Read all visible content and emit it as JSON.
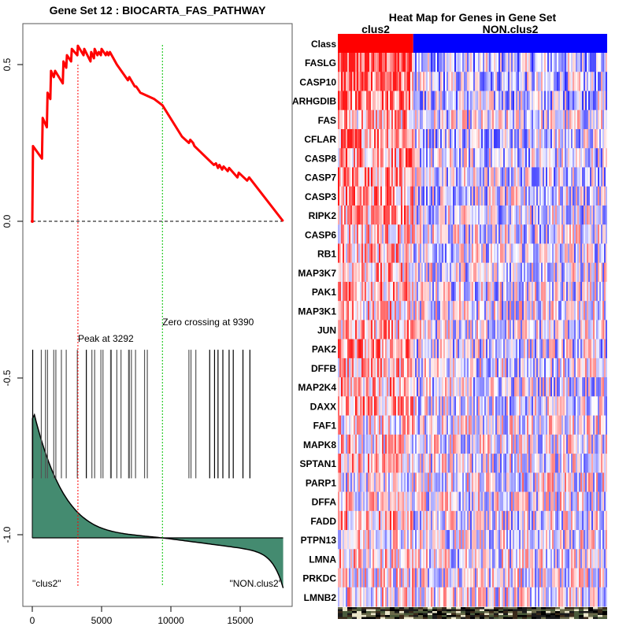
{
  "chart_data": [
    {
      "type": "line",
      "panel": "enrichment-plot",
      "title": "Gene Set  12 : BIOCARTA_FAS_PATHWAY",
      "xlabel": "",
      "ylabel": "",
      "xlim": [
        0,
        18000
      ],
      "ylim": [
        -1.2,
        0.65
      ],
      "x_ticks": [
        0,
        5000,
        10000,
        15000
      ],
      "x_tick_labels": [
        "0",
        "5000",
        "10000",
        "15000"
      ],
      "y_ticks": [
        0.5,
        0.0,
        -0.5,
        -1.0
      ],
      "y_tick_labels": [
        "0.5",
        "0.0",
        "-0.5",
        "-1.0"
      ],
      "grid": false,
      "series": [
        {
          "name": "running-enrichment-score",
          "color": "#ff0000",
          "x": [
            0,
            50,
            700,
            750,
            1050,
            1100,
            1300,
            1350,
            1550,
            1650,
            2200,
            2250,
            2450,
            2500,
            2800,
            2850,
            3250,
            3292,
            3700,
            3750,
            4200,
            4250,
            4450,
            4500,
            4700,
            4800,
            4950,
            5000,
            5300,
            5400,
            5500,
            5600,
            6100,
            6900,
            7000,
            7400,
            7500,
            7800,
            8300,
            8800,
            9390,
            10800,
            11300,
            11400,
            11600,
            11700,
            13100,
            13250,
            13400,
            13500,
            13700,
            13800,
            14100,
            14200,
            14800,
            14900,
            15500,
            15650,
            18100
          ],
          "y": [
            0.0,
            0.24,
            0.2,
            0.33,
            0.3,
            0.41,
            0.39,
            0.48,
            0.46,
            0.48,
            0.44,
            0.51,
            0.49,
            0.53,
            0.51,
            0.55,
            0.53,
            0.56,
            0.53,
            0.55,
            0.51,
            0.54,
            0.52,
            0.55,
            0.53,
            0.54,
            0.53,
            0.55,
            0.53,
            0.54,
            0.53,
            0.54,
            0.5,
            0.45,
            0.46,
            0.43,
            0.43,
            0.41,
            0.4,
            0.39,
            0.37,
            0.27,
            0.25,
            0.26,
            0.25,
            0.24,
            0.18,
            0.185,
            0.17,
            0.18,
            0.165,
            0.175,
            0.16,
            0.17,
            0.14,
            0.155,
            0.13,
            0.14,
            0.0
          ]
        }
      ],
      "baseline": 0.0,
      "annotations": [
        {
          "text": "Peak at 3292",
          "x": 3292,
          "line_color": "#ff0000"
        },
        {
          "text": "Zero crossing at 9390",
          "x": 9390,
          "line_color": "#00c000"
        }
      ],
      "hit_positions": [
        30,
        650,
        950,
        1100,
        1550,
        1700,
        2100,
        2450,
        3250,
        3900,
        4300,
        4500,
        4950,
        5100,
        5650,
        5700,
        6100,
        6400,
        6950,
        7000,
        7150,
        7450,
        8100,
        8300,
        11300,
        11450,
        11800,
        12800,
        13150,
        13400,
        13750,
        14200,
        14500,
        15200,
        15700
      ],
      "hit_y_range": [
        -0.82,
        -0.41
      ],
      "ranked_metric": {
        "color_fill": "#448b70",
        "baseline": -1.01,
        "top_value": -0.63,
        "bottom_value": -1.17
      },
      "class_labels": [
        "\"clus2\"",
        "\"NON.clus2\""
      ]
    },
    {
      "type": "heatmap",
      "panel": "gene-heatmap",
      "title": "Heat Map for Genes in Gene Set",
      "column_groups": [
        {
          "name": "clus2",
          "color": "#ff0000",
          "fraction": 0.28
        },
        {
          "name": "NON.clus2",
          "color": "#0000ff",
          "fraction": 0.72
        }
      ],
      "class_row_label": "Class",
      "rows": [
        "FASLG",
        "CASP10",
        "ARHGDIB",
        "FAS",
        "CFLAR",
        "CASP8",
        "CASP7",
        "CASP3",
        "RIPK2",
        "CASP6",
        "RB1",
        "MAP3K7",
        "PAK1",
        "MAP3K1",
        "JUN",
        "PAK2",
        "DFFB",
        "MAP2K4",
        "DAXX",
        "FAF1",
        "MAPK8",
        "SPTAN1",
        "PARP1",
        "DFFA",
        "FADD",
        "PTPN13",
        "LMNA",
        "PRKDC",
        "LMNB2"
      ],
      "row_bias_clus2": [
        0.85,
        0.8,
        0.75,
        0.35,
        0.6,
        0.5,
        0.55,
        0.5,
        0.45,
        0.3,
        0.35,
        0.3,
        0.4,
        0.3,
        0.3,
        0.45,
        0.25,
        0.35,
        0.4,
        0.1,
        0.15,
        0.25,
        0.0,
        0.1,
        0.3,
        0.15,
        0.2,
        0.1,
        0.1
      ],
      "color_scale": {
        "low": "#0000ff",
        "mid": "#ffffff",
        "high": "#ff0000"
      }
    }
  ]
}
